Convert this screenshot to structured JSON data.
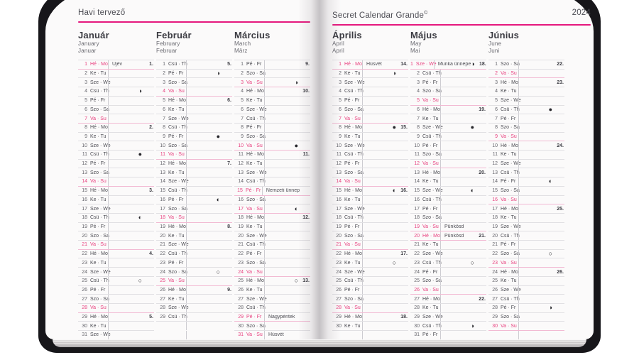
{
  "left_page": {
    "title": "Havi tervező"
  },
  "right_page": {
    "title": "Secret Calendar Grande",
    "title_mark": "©",
    "year": "2024"
  },
  "colors": {
    "accent_pink": "#e5187d",
    "holiday_red": "#e8417f",
    "row_line": "#e1e0e3",
    "sunday_line": "#f2bad3",
    "page_background": "#fbfafa",
    "cover_black": "#17161a"
  },
  "moon_glyphs": {
    "last": "◑",
    "new": "●",
    "first": "◐",
    "full": "○"
  },
  "months": [
    {
      "page": "left",
      "name_hu": "Január",
      "name_en": "January",
      "name_de": "Januar",
      "filler_rows": 0,
      "days": [
        {
          "d": 1,
          "w": "Hé · Mo",
          "r": 1,
          "h": "Újév",
          "k": "1."
        },
        {
          "d": 2,
          "w": "Ke · Tu"
        },
        {
          "d": 3,
          "w": "Sze · We"
        },
        {
          "d": 4,
          "w": "Csü · Th",
          "m": "last"
        },
        {
          "d": 5,
          "w": "Pé · Fr"
        },
        {
          "d": 6,
          "w": "Szo · Sa"
        },
        {
          "d": 7,
          "w": "Va · Su",
          "r": 1
        },
        {
          "d": 8,
          "w": "Hé · Mo",
          "k": "2."
        },
        {
          "d": 9,
          "w": "Ke · Tu"
        },
        {
          "d": 10,
          "w": "Sze · We"
        },
        {
          "d": 11,
          "w": "Csü · Th",
          "m": "new"
        },
        {
          "d": 12,
          "w": "Pé · Fr"
        },
        {
          "d": 13,
          "w": "Szo · Sa"
        },
        {
          "d": 14,
          "w": "Va · Su",
          "r": 1
        },
        {
          "d": 15,
          "w": "Hé · Mo",
          "k": "3."
        },
        {
          "d": 16,
          "w": "Ke · Tu"
        },
        {
          "d": 17,
          "w": "Sze · We"
        },
        {
          "d": 18,
          "w": "Csü · Th",
          "m": "first"
        },
        {
          "d": 19,
          "w": "Pé · Fr"
        },
        {
          "d": 20,
          "w": "Szo · Sa"
        },
        {
          "d": 21,
          "w": "Va · Su",
          "r": 1
        },
        {
          "d": 22,
          "w": "Hé · Mo",
          "k": "4."
        },
        {
          "d": 23,
          "w": "Ke · Tu"
        },
        {
          "d": 24,
          "w": "Sze · We"
        },
        {
          "d": 25,
          "w": "Csü · Th",
          "m": "full"
        },
        {
          "d": 26,
          "w": "Pé · Fr"
        },
        {
          "d": 27,
          "w": "Szo · Sa"
        },
        {
          "d": 28,
          "w": "Va · Su",
          "r": 1
        },
        {
          "d": 29,
          "w": "Hé · Mo",
          "k": "5."
        },
        {
          "d": 30,
          "w": "Ke · Tu"
        },
        {
          "d": 31,
          "w": "Sze · We"
        }
      ]
    },
    {
      "page": "left",
      "name_hu": "Február",
      "name_en": "February",
      "name_de": "Februar",
      "filler_rows": 2,
      "days": [
        {
          "d": 1,
          "w": "Csü · Th",
          "k": "5."
        },
        {
          "d": 2,
          "w": "Pé · Fr",
          "m": "last"
        },
        {
          "d": 3,
          "w": "Szo · Sa"
        },
        {
          "d": 4,
          "w": "Va · Su",
          "r": 1
        },
        {
          "d": 5,
          "w": "Hé · Mo",
          "k": "6."
        },
        {
          "d": 6,
          "w": "Ke · Tu"
        },
        {
          "d": 7,
          "w": "Sze · We"
        },
        {
          "d": 8,
          "w": "Csü · Th"
        },
        {
          "d": 9,
          "w": "Pé · Fr",
          "m": "new"
        },
        {
          "d": 10,
          "w": "Szo · Sa"
        },
        {
          "d": 11,
          "w": "Va · Su",
          "r": 1
        },
        {
          "d": 12,
          "w": "Hé · Mo",
          "k": "7."
        },
        {
          "d": 13,
          "w": "Ke · Tu"
        },
        {
          "d": 14,
          "w": "Sze · We"
        },
        {
          "d": 15,
          "w": "Csü · Th"
        },
        {
          "d": 16,
          "w": "Pé · Fr",
          "m": "first"
        },
        {
          "d": 17,
          "w": "Szo · Sa"
        },
        {
          "d": 18,
          "w": "Va · Su",
          "r": 1
        },
        {
          "d": 19,
          "w": "Hé · Mo",
          "k": "8."
        },
        {
          "d": 20,
          "w": "Ke · Tu"
        },
        {
          "d": 21,
          "w": "Sze · We"
        },
        {
          "d": 22,
          "w": "Csü · Th"
        },
        {
          "d": 23,
          "w": "Pé · Fr"
        },
        {
          "d": 24,
          "w": "Szo · Sa",
          "m": "full"
        },
        {
          "d": 25,
          "w": "Va · Su",
          "r": 1
        },
        {
          "d": 26,
          "w": "Hé · Mo",
          "k": "9."
        },
        {
          "d": 27,
          "w": "Ke · Tu"
        },
        {
          "d": 28,
          "w": "Sze · We"
        },
        {
          "d": 29,
          "w": "Csü · Th"
        }
      ]
    },
    {
      "page": "left",
      "name_hu": "Március",
      "name_en": "March",
      "name_de": "März",
      "filler_rows": 0,
      "days": [
        {
          "d": 1,
          "w": "Pé · Fr",
          "k": "9."
        },
        {
          "d": 2,
          "w": "Szo · Sa"
        },
        {
          "d": 3,
          "w": "Va · Su",
          "r": 1,
          "m": "last"
        },
        {
          "d": 4,
          "w": "Hé · Mo",
          "k": "10."
        },
        {
          "d": 5,
          "w": "Ke · Tu"
        },
        {
          "d": 6,
          "w": "Sze · We"
        },
        {
          "d": 7,
          "w": "Csü · Th"
        },
        {
          "d": 8,
          "w": "Pé · Fr"
        },
        {
          "d": 9,
          "w": "Szo · Sa"
        },
        {
          "d": 10,
          "w": "Va · Su",
          "r": 1,
          "m": "new"
        },
        {
          "d": 11,
          "w": "Hé · Mo",
          "k": "11."
        },
        {
          "d": 12,
          "w": "Ke · Tu"
        },
        {
          "d": 13,
          "w": "Sze · We"
        },
        {
          "d": 14,
          "w": "Csü · Th"
        },
        {
          "d": 15,
          "w": "Pé · Fr",
          "r": 1,
          "h": "Nemzeti ünnep"
        },
        {
          "d": 16,
          "w": "Szo · Sa"
        },
        {
          "d": 17,
          "w": "Va · Su",
          "r": 1,
          "m": "first"
        },
        {
          "d": 18,
          "w": "Hé · Mo",
          "k": "12."
        },
        {
          "d": 19,
          "w": "Ke · Tu"
        },
        {
          "d": 20,
          "w": "Sze · We"
        },
        {
          "d": 21,
          "w": "Csü · Th"
        },
        {
          "d": 22,
          "w": "Pé · Fr"
        },
        {
          "d": 23,
          "w": "Szo · Sa"
        },
        {
          "d": 24,
          "w": "Va · Su",
          "r": 1
        },
        {
          "d": 25,
          "w": "Hé · Mo",
          "m": "full",
          "k": "13."
        },
        {
          "d": 26,
          "w": "Ke · Tu"
        },
        {
          "d": 27,
          "w": "Sze · We"
        },
        {
          "d": 28,
          "w": "Csü · Th"
        },
        {
          "d": 29,
          "w": "Pé · Fr",
          "r": 1,
          "h": "Nagypéntek"
        },
        {
          "d": 30,
          "w": "Szo · Sa"
        },
        {
          "d": 31,
          "w": "Va · Su",
          "r": 1,
          "h": "Húsvét"
        }
      ]
    },
    {
      "page": "right",
      "name_hu": "Április",
      "name_en": "April",
      "name_de": "April",
      "filler_rows": 1,
      "days": [
        {
          "d": 1,
          "w": "Hé · Mo",
          "r": 1,
          "h": "Húsvét",
          "k": "14."
        },
        {
          "d": 2,
          "w": "Ke · Tu",
          "m": "last"
        },
        {
          "d": 3,
          "w": "Sze · We"
        },
        {
          "d": 4,
          "w": "Csü · Th"
        },
        {
          "d": 5,
          "w": "Pé · Fr"
        },
        {
          "d": 6,
          "w": "Szo · Sa"
        },
        {
          "d": 7,
          "w": "Va · Su",
          "r": 1
        },
        {
          "d": 8,
          "w": "Hé · Mo",
          "m": "new",
          "k": "15."
        },
        {
          "d": 9,
          "w": "Ke · Tu"
        },
        {
          "d": 10,
          "w": "Sze · We"
        },
        {
          "d": 11,
          "w": "Csü · Th"
        },
        {
          "d": 12,
          "w": "Pé · Fr"
        },
        {
          "d": 13,
          "w": "Szo · Sa"
        },
        {
          "d": 14,
          "w": "Va · Su",
          "r": 1
        },
        {
          "d": 15,
          "w": "Hé · Mo",
          "m": "first",
          "k": "16."
        },
        {
          "d": 16,
          "w": "Ke · Tu"
        },
        {
          "d": 17,
          "w": "Sze · We"
        },
        {
          "d": 18,
          "w": "Csü · Th"
        },
        {
          "d": 19,
          "w": "Pé · Fr"
        },
        {
          "d": 20,
          "w": "Szo · Sa"
        },
        {
          "d": 21,
          "w": "Va · Su",
          "r": 1
        },
        {
          "d": 22,
          "w": "Hé · Mo",
          "k": "17."
        },
        {
          "d": 23,
          "w": "Ke · Tu",
          "m": "full"
        },
        {
          "d": 24,
          "w": "Sze · We"
        },
        {
          "d": 25,
          "w": "Csü · Th"
        },
        {
          "d": 26,
          "w": "Pé · Fr"
        },
        {
          "d": 27,
          "w": "Szo · Sa"
        },
        {
          "d": 28,
          "w": "Va · Su",
          "r": 1
        },
        {
          "d": 29,
          "w": "Hé · Mo",
          "k": "18."
        },
        {
          "d": 30,
          "w": "Ke · Tu"
        }
      ]
    },
    {
      "page": "right",
      "name_hu": "Május",
      "name_en": "May",
      "name_de": "Mai",
      "filler_rows": 0,
      "days": [
        {
          "d": 1,
          "w": "Sze · We",
          "r": 1,
          "h": "Munka ünnepe",
          "m": "last",
          "k": "18."
        },
        {
          "d": 2,
          "w": "Csü · Th"
        },
        {
          "d": 3,
          "w": "Pé · Fr"
        },
        {
          "d": 4,
          "w": "Szo · Sa"
        },
        {
          "d": 5,
          "w": "Va · Su",
          "r": 1
        },
        {
          "d": 6,
          "w": "Hé · Mo",
          "k": "19."
        },
        {
          "d": 7,
          "w": "Ke · Tu"
        },
        {
          "d": 8,
          "w": "Sze · We",
          "m": "new"
        },
        {
          "d": 9,
          "w": "Csü · Th"
        },
        {
          "d": 10,
          "w": "Pé · Fr"
        },
        {
          "d": 11,
          "w": "Szo · Sa"
        },
        {
          "d": 12,
          "w": "Va · Su",
          "r": 1
        },
        {
          "d": 13,
          "w": "Hé · Mo",
          "k": "20."
        },
        {
          "d": 14,
          "w": "Ke · Tu"
        },
        {
          "d": 15,
          "w": "Sze · We",
          "m": "first"
        },
        {
          "d": 16,
          "w": "Csü · Th"
        },
        {
          "d": 17,
          "w": "Pé · Fr"
        },
        {
          "d": 18,
          "w": "Szo · Sa"
        },
        {
          "d": 19,
          "w": "Va · Su",
          "r": 1,
          "h": "Pünkösd"
        },
        {
          "d": 20,
          "w": "Hé · Mo",
          "r": 1,
          "h": "Pünkösd",
          "k": "21."
        },
        {
          "d": 21,
          "w": "Ke · Tu"
        },
        {
          "d": 22,
          "w": "Sze · We"
        },
        {
          "d": 23,
          "w": "Csü · Th",
          "m": "full"
        },
        {
          "d": 24,
          "w": "Pé · Fr"
        },
        {
          "d": 25,
          "w": "Szo · Sa"
        },
        {
          "d": 26,
          "w": "Va · Su",
          "r": 1
        },
        {
          "d": 27,
          "w": "Hé · Mo",
          "k": "22."
        },
        {
          "d": 28,
          "w": "Ke · Tu"
        },
        {
          "d": 29,
          "w": "Sze · We"
        },
        {
          "d": 30,
          "w": "Csü · Th",
          "m": "last"
        },
        {
          "d": 31,
          "w": "Pé · Fr"
        }
      ]
    },
    {
      "page": "right",
      "name_hu": "Június",
      "name_en": "June",
      "name_de": "Juni",
      "filler_rows": 1,
      "days": [
        {
          "d": 1,
          "w": "Szo · Sa",
          "k": "22."
        },
        {
          "d": 2,
          "w": "Va · Su",
          "r": 1
        },
        {
          "d": 3,
          "w": "Hé · Mo",
          "k": "23."
        },
        {
          "d": 4,
          "w": "Ke · Tu"
        },
        {
          "d": 5,
          "w": "Sze · We"
        },
        {
          "d": 6,
          "w": "Csü · Th",
          "m": "new"
        },
        {
          "d": 7,
          "w": "Pé · Fr"
        },
        {
          "d": 8,
          "w": "Szo · Sa"
        },
        {
          "d": 9,
          "w": "Va · Su",
          "r": 1
        },
        {
          "d": 10,
          "w": "Hé · Mo",
          "k": "24."
        },
        {
          "d": 11,
          "w": "Ke · Tu"
        },
        {
          "d": 12,
          "w": "Sze · We"
        },
        {
          "d": 13,
          "w": "Csü · Th"
        },
        {
          "d": 14,
          "w": "Pé · Fr",
          "m": "first"
        },
        {
          "d": 15,
          "w": "Szo · Sa"
        },
        {
          "d": 16,
          "w": "Va · Su",
          "r": 1
        },
        {
          "d": 17,
          "w": "Hé · Mo",
          "k": "25."
        },
        {
          "d": 18,
          "w": "Ke · Tu"
        },
        {
          "d": 19,
          "w": "Sze · We"
        },
        {
          "d": 20,
          "w": "Csü · Th"
        },
        {
          "d": 21,
          "w": "Pé · Fr"
        },
        {
          "d": 22,
          "w": "Szo · Sa",
          "m": "full"
        },
        {
          "d": 23,
          "w": "Va · Su",
          "r": 1
        },
        {
          "d": 24,
          "w": "Hé · Mo",
          "k": "26."
        },
        {
          "d": 25,
          "w": "Ke · Tu"
        },
        {
          "d": 26,
          "w": "Sze · We"
        },
        {
          "d": 27,
          "w": "Csü · Th"
        },
        {
          "d": 28,
          "w": "Pé · Fr",
          "m": "last"
        },
        {
          "d": 29,
          "w": "Szo · Sa"
        },
        {
          "d": 30,
          "w": "Va · Su",
          "r": 1
        }
      ]
    }
  ]
}
